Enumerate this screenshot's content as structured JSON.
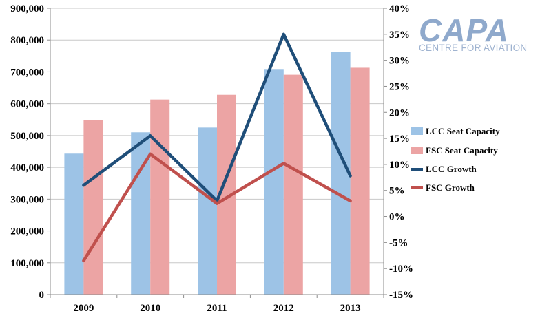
{
  "logo": {
    "main": "CAPA",
    "sub": "CENTRE FOR AVIATION"
  },
  "chart_data": {
    "type": "bar",
    "categories": [
      "2009",
      "2010",
      "2011",
      "2012",
      "2013"
    ],
    "series": [
      {
        "name": "LCC Seat Capacity",
        "type": "bar",
        "axis": "left",
        "color": "#9dc3e6",
        "values": [
          443000,
          510000,
          525000,
          709000,
          762000
        ]
      },
      {
        "name": "FSC Seat Capacity",
        "type": "bar",
        "axis": "left",
        "color": "#eca4a4",
        "values": [
          548000,
          613000,
          628000,
          691000,
          713000
        ]
      },
      {
        "name": "LCC Growth",
        "type": "line",
        "axis": "right",
        "color": "#1f4e79",
        "values": [
          6.0,
          15.5,
          3.0,
          35.0,
          7.8
        ]
      },
      {
        "name": "FSC Growth",
        "type": "line",
        "axis": "right",
        "color": "#c0504d",
        "values": [
          -8.5,
          12.0,
          2.5,
          10.2,
          3.0
        ]
      }
    ],
    "y_left": {
      "min": 0,
      "max": 900000,
      "step": 100000,
      "tick_labels": [
        "0",
        "100,000",
        "200,000",
        "300,000",
        "400,000",
        "500,000",
        "600,000",
        "700,000",
        "800,000",
        "900,000"
      ]
    },
    "y_right": {
      "min": -15,
      "max": 40,
      "step": 5,
      "tick_labels": [
        "-15%",
        "-10%",
        "-5%",
        "0%",
        "5%",
        "10%",
        "15%",
        "20%",
        "25%",
        "30%",
        "35%",
        "40%"
      ]
    },
    "grid": "horizontal",
    "legend_position": "right"
  }
}
